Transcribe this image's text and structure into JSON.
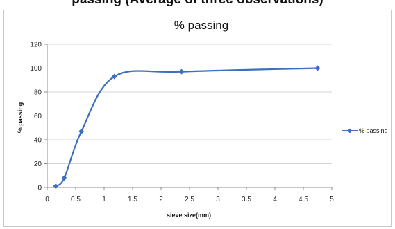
{
  "page": {
    "caption": "passing (Average of three observations)"
  },
  "chart_data": {
    "type": "line",
    "title": "% passing",
    "xlabel": "sieve size(mm)",
    "ylabel": "% passing",
    "xlim": [
      0,
      5
    ],
    "ylim": [
      0,
      120
    ],
    "x_ticks": [
      "0",
      "0.5",
      "1",
      "1.5",
      "2",
      "2.5",
      "3",
      "3.5",
      "4",
      "4.5",
      "5"
    ],
    "y_ticks": [
      "0",
      "20",
      "40",
      "60",
      "80",
      "100",
      "120"
    ],
    "grid": "horizontal",
    "legend_position": "right",
    "series": [
      {
        "name": "% passing",
        "color": "#3d6ebf",
        "marker": "diamond",
        "smooth": true,
        "x": [
          0.15,
          0.3,
          0.6,
          1.18,
          2.36,
          4.75
        ],
        "y": [
          1,
          8,
          47,
          93,
          97,
          100
        ]
      }
    ]
  }
}
